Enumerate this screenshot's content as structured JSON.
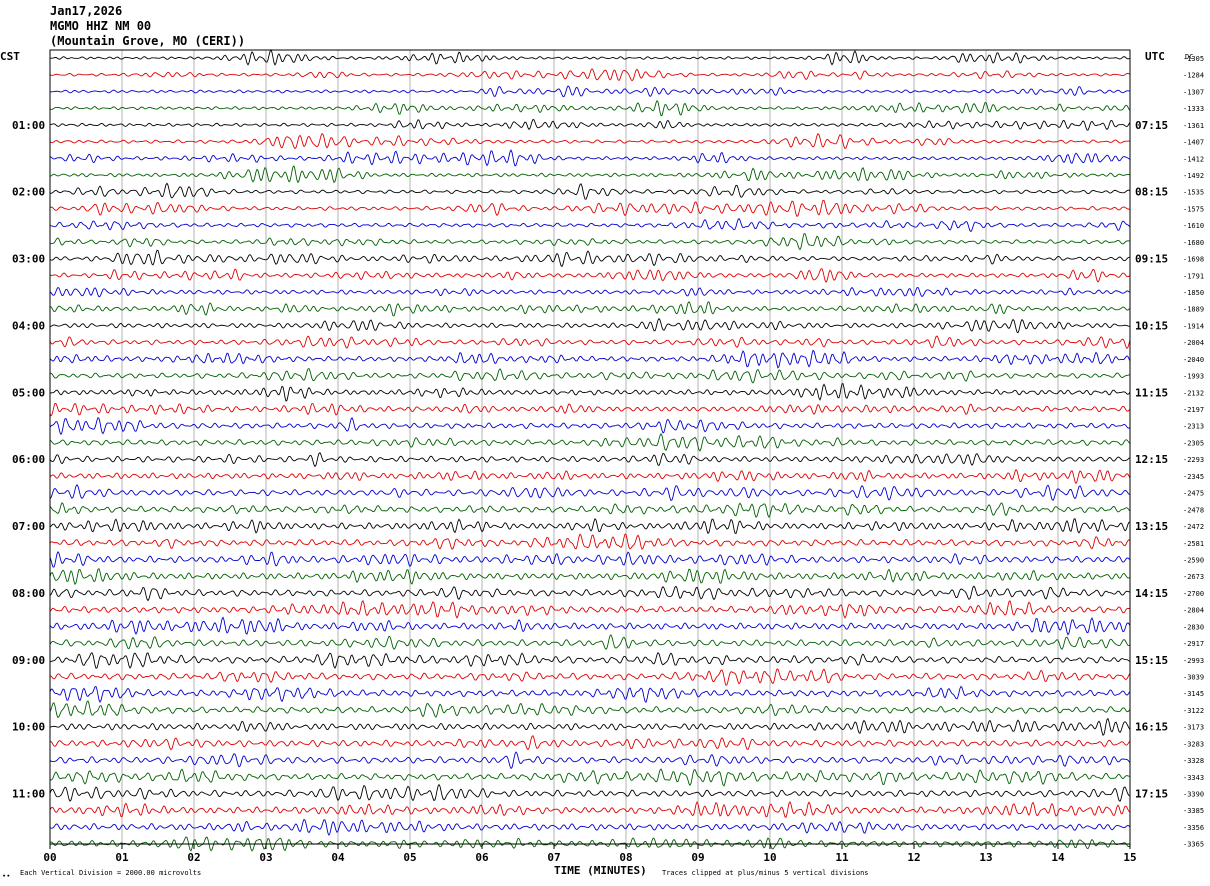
{
  "header": {
    "date": "Jan17,2026",
    "station": "MGMO HHZ NM 00",
    "location": "(Mountain Grove, MO (CERI))"
  },
  "left_axis_title": "CST",
  "right_axis_title": "UTC",
  "dc_title": "DC",
  "footer": {
    "scale_note": "Each Vertical Division = 2000.00 microvolts",
    "xlabel": "TIME (MINUTES)",
    "clip_note": "Traces clipped at plus/minus 5 vertical divisions",
    "corner_mark": "∙∙"
  },
  "chart_data": {
    "type": "line",
    "title": "",
    "xlabel": "TIME (MINUTES)",
    "ylabel": "",
    "xlim": [
      0,
      15
    ],
    "x_ticks": [
      "00",
      "01",
      "02",
      "03",
      "04",
      "05",
      "06",
      "07",
      "08",
      "09",
      "10",
      "11",
      "12",
      "13",
      "14",
      "15"
    ],
    "grid": true,
    "trace_colors": [
      "#000000",
      "#e00000",
      "#0000d0",
      "#006000"
    ],
    "trace_count": 48,
    "left_hour_labels": [
      "01:00",
      "02:00",
      "03:00",
      "04:00",
      "05:00",
      "06:00",
      "07:00",
      "08:00",
      "09:00",
      "10:00",
      "11:00"
    ],
    "right_hour_labels": [
      "07:15",
      "08:15",
      "09:15",
      "10:15",
      "11:15",
      "12:15",
      "13:15",
      "14:15",
      "15:15",
      "16:15",
      "17:15"
    ],
    "dc_offsets": [
      "-1305",
      "-1284",
      "-1307",
      "-1333",
      "-1361",
      "-1407",
      "-1412",
      "-1492",
      "-1535",
      "-1575",
      "-1610",
      "-1680",
      "-1698",
      "-1791",
      "-1850",
      "-1889",
      "-1914",
      "-2004",
      "-2040",
      "-1993",
      "-2132",
      "-2197",
      "-2313",
      "-2305",
      "-2293",
      "-2345",
      "-2475",
      "-2478",
      "-2472",
      "-2581",
      "-2590",
      "-2673",
      "-2700",
      "-2804",
      "-2830",
      "-2917",
      "-2993",
      "-3039",
      "-3145",
      "-3122",
      "-3173",
      "-3283",
      "-3328",
      "-3343",
      "-3390",
      "-3385",
      "-3356",
      "-3365"
    ]
  }
}
